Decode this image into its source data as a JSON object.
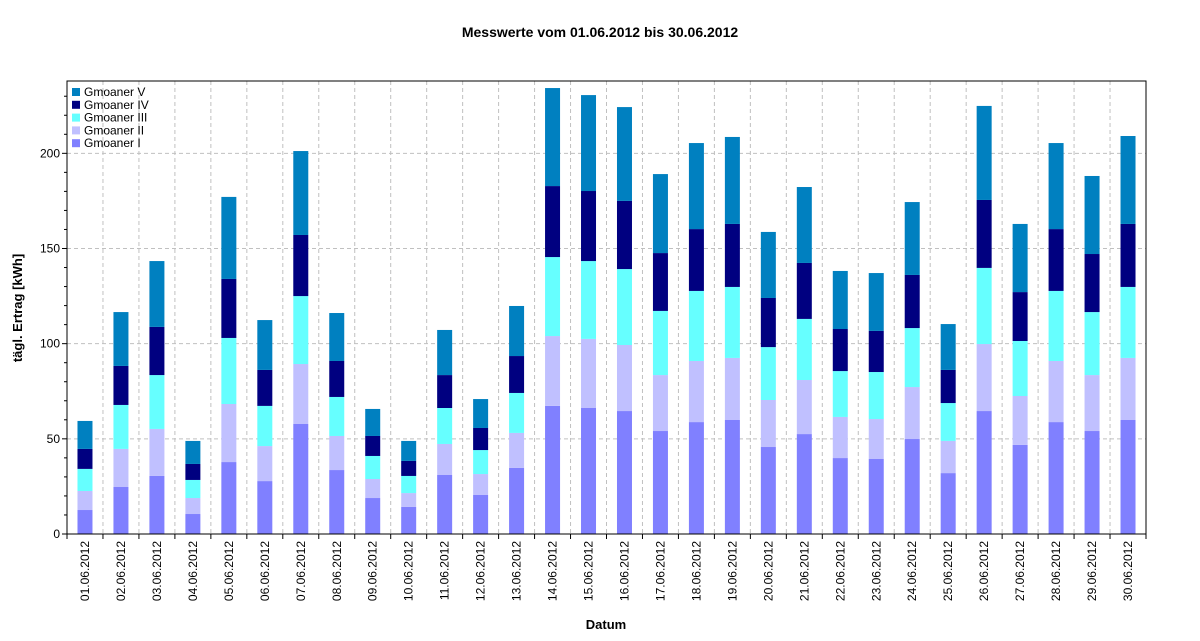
{
  "chart_data": {
    "type": "bar",
    "stacked": true,
    "title": "Messwerte vom 01.06.2012 bis 30.06.2012",
    "xlabel": "Datum",
    "ylabel": "tägl. Ertrag [kWh]",
    "ylim": [
      0,
      238
    ],
    "yticks": [
      0,
      50,
      100,
      150,
      200
    ],
    "grid": true,
    "legend_position": "top-left",
    "categories": [
      "01.06.2012",
      "02.06.2012",
      "03.06.2012",
      "04.06.2012",
      "05.06.2012",
      "06.06.2012",
      "07.06.2012",
      "08.06.2012",
      "09.06.2012",
      "10.06.2012",
      "11.06.2012",
      "12.06.2012",
      "13.06.2012",
      "14.06.2012",
      "15.06.2012",
      "16.06.2012",
      "17.06.2012",
      "18.06.2012",
      "19.06.2012",
      "20.06.2012",
      "21.06.2012",
      "22.06.2012",
      "23.06.2012",
      "24.06.2012",
      "25.06.2012",
      "26.06.2012",
      "27.06.2012",
      "28.06.2012",
      "29.06.2012",
      "30.06.2012"
    ],
    "series": [
      {
        "name": "Gmoaner I",
        "color": "#8080ff",
        "values": [
          12.6,
          24.7,
          30.5,
          10.5,
          37.8,
          27.8,
          57.8,
          33.6,
          18.9,
          14.2,
          31.0,
          20.5,
          34.7,
          67.3,
          66.2,
          64.6,
          54.1,
          58.8,
          59.9,
          45.7,
          52.5,
          39.9,
          39.4,
          49.9,
          32.0,
          64.6,
          46.8,
          58.8,
          54.1,
          59.9
        ]
      },
      {
        "name": "Gmoaner II",
        "color": "#c0c0ff",
        "values": [
          10.0,
          20.0,
          24.7,
          8.4,
          30.5,
          18.4,
          31.5,
          17.9,
          10.0,
          7.3,
          16.3,
          11.0,
          18.4,
          36.7,
          36.3,
          34.7,
          29.4,
          32.1,
          32.6,
          24.7,
          28.4,
          21.6,
          21.0,
          27.3,
          16.9,
          35.2,
          25.7,
          32.1,
          29.4,
          32.6
        ]
      },
      {
        "name": "Gmoaner III",
        "color": "#66ffff",
        "values": [
          11.6,
          23.1,
          28.3,
          9.5,
          34.7,
          21.1,
          35.7,
          20.5,
          12.1,
          9.0,
          18.9,
          12.6,
          21.0,
          41.5,
          40.9,
          39.9,
          33.7,
          36.8,
          37.3,
          27.8,
          32.1,
          24.1,
          24.7,
          31.0,
          19.9,
          40.0,
          28.9,
          36.8,
          33.1,
          37.3
        ]
      },
      {
        "name": "Gmoaner IV",
        "color": "#000080",
        "values": [
          10.5,
          20.5,
          25.3,
          8.4,
          31.0,
          18.9,
          32.1,
          18.9,
          10.5,
          7.9,
          17.3,
          11.6,
          19.4,
          37.3,
          36.8,
          35.8,
          30.4,
          32.5,
          33.1,
          25.8,
          29.4,
          22.1,
          21.6,
          27.9,
          17.4,
          35.7,
          25.7,
          32.5,
          30.5,
          33.1
        ]
      },
      {
        "name": "Gmoaner V",
        "color": "#0080c0",
        "values": [
          14.7,
          28.3,
          34.6,
          12.1,
          43.1,
          26.2,
          44.1,
          25.2,
          14.2,
          10.5,
          23.7,
          15.2,
          26.3,
          51.5,
          50.4,
          49.3,
          41.5,
          45.2,
          45.7,
          34.7,
          39.9,
          30.5,
          30.4,
          38.3,
          24.1,
          49.4,
          35.8,
          45.2,
          41.0,
          46.2
        ]
      }
    ]
  }
}
